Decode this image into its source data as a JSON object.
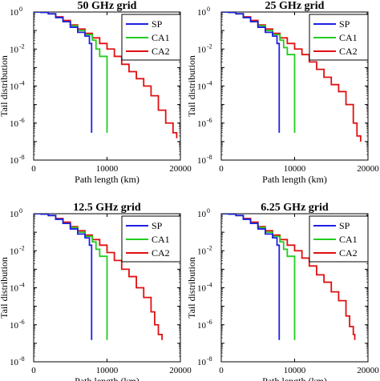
{
  "figure": {
    "xlabel": "Path length (km)",
    "ylabel": "Tail distribution"
  },
  "colors": {
    "SP": "#1f1fe6",
    "CA1": "#22cc22",
    "CA2": "#e01010",
    "axis": "#000000"
  },
  "chart_data": [
    {
      "type": "line",
      "title": "50 GHz grid",
      "xlabel": "Path length (km)",
      "ylabel": "Tail distribution",
      "xlim": [
        0,
        20000
      ],
      "ylim": [
        1e-08,
        1
      ],
      "yscale": "log",
      "grid": false,
      "legend": "top-right",
      "x_ticks": [
        0,
        10000,
        20000
      ],
      "x_tick_labels": [
        "0",
        "10000",
        "20000"
      ],
      "y_ticks": [
        1e-08,
        1e-06,
        0.0001,
        0.01,
        1
      ],
      "y_tick_labels": [
        [
          "10",
          "-8"
        ],
        [
          "10",
          "-6"
        ],
        [
          "10",
          "-4"
        ],
        [
          "10",
          "-2"
        ],
        [
          "10",
          "0"
        ]
      ],
      "series": [
        {
          "name": "SP",
          "color": "#1f1fe6",
          "x": [
            0,
            1000,
            2000,
            3000,
            4000,
            5000,
            6000,
            7000,
            7600,
            7900,
            7900
          ],
          "y": [
            1,
            0.95,
            0.8,
            0.5,
            0.3,
            0.15,
            0.08,
            0.05,
            0.02,
            0.01,
            3e-07
          ]
        },
        {
          "name": "CA1",
          "color": "#22cc22",
          "x": [
            0,
            1000,
            2000,
            3000,
            4000,
            5000,
            6000,
            7000,
            8000,
            8500,
            9000,
            10000,
            10000
          ],
          "y": [
            1,
            0.95,
            0.8,
            0.5,
            0.3,
            0.18,
            0.1,
            0.06,
            0.03,
            0.01,
            0.004,
            0.004,
            3e-07
          ]
        },
        {
          "name": "CA2",
          "color": "#e01010",
          "x": [
            0,
            1000,
            2000,
            3000,
            4000,
            5000,
            6000,
            7000,
            8000,
            9000,
            10000,
            11000,
            12000,
            13000,
            14000,
            15000,
            16000,
            17000,
            18000,
            19000,
            19500
          ],
          "y": [
            1,
            0.95,
            0.8,
            0.55,
            0.35,
            0.2,
            0.12,
            0.07,
            0.04,
            0.02,
            0.01,
            0.004,
            0.0015,
            0.0006,
            0.00025,
            0.0001,
            3e-05,
            5e-06,
            1e-06,
            3e-07,
            1.5e-07
          ]
        }
      ]
    },
    {
      "type": "line",
      "title": "25 GHz grid",
      "xlabel": "Path length (km)",
      "ylabel": "Tail distribution",
      "xlim": [
        0,
        20000
      ],
      "ylim": [
        1e-08,
        1
      ],
      "yscale": "log",
      "grid": false,
      "legend": "top-right",
      "x_ticks": [
        0,
        10000,
        20000
      ],
      "x_tick_labels": [
        "0",
        "10000",
        "20000"
      ],
      "y_ticks": [
        1e-08,
        1e-06,
        0.0001,
        0.01,
        1
      ],
      "y_tick_labels": [
        [
          "10",
          "-8"
        ],
        [
          "10",
          "-6"
        ],
        [
          "10",
          "-4"
        ],
        [
          "10",
          "-2"
        ],
        [
          "10",
          "0"
        ]
      ],
      "series": [
        {
          "name": "SP",
          "color": "#1f1fe6",
          "x": [
            0,
            1000,
            2000,
            3000,
            4000,
            5000,
            6000,
            7000,
            7600,
            7900,
            7900
          ],
          "y": [
            1,
            0.95,
            0.8,
            0.5,
            0.3,
            0.15,
            0.08,
            0.05,
            0.02,
            0.01,
            3e-07
          ]
        },
        {
          "name": "CA1",
          "color": "#22cc22",
          "x": [
            0,
            1000,
            2000,
            3000,
            4000,
            5000,
            6000,
            7000,
            8000,
            8500,
            9000,
            10000,
            10000
          ],
          "y": [
            1,
            0.95,
            0.8,
            0.5,
            0.3,
            0.18,
            0.1,
            0.06,
            0.03,
            0.012,
            0.005,
            0.005,
            3e-07
          ]
        },
        {
          "name": "CA2",
          "color": "#e01010",
          "x": [
            0,
            1000,
            2000,
            3000,
            4000,
            5000,
            6000,
            7000,
            8000,
            9000,
            10000,
            11000,
            12000,
            13000,
            14000,
            15000,
            16000,
            17000,
            18000,
            18500,
            19000
          ],
          "y": [
            1,
            0.95,
            0.8,
            0.55,
            0.35,
            0.2,
            0.12,
            0.07,
            0.04,
            0.02,
            0.01,
            0.005,
            0.002,
            0.0008,
            0.0003,
            0.00012,
            5e-05,
            1e-05,
            1e-06,
            2e-07,
            1e-07
          ]
        }
      ]
    },
    {
      "type": "line",
      "title": "12.5 GHz grid",
      "xlabel": "Path length (km)",
      "ylabel": "Tail distribution",
      "xlim": [
        0,
        20000
      ],
      "ylim": [
        1e-08,
        1
      ],
      "yscale": "log",
      "grid": false,
      "legend": "top-right",
      "x_ticks": [
        0,
        10000,
        20000
      ],
      "x_tick_labels": [
        "0",
        "10000",
        "20000"
      ],
      "y_ticks": [
        1e-08,
        1e-06,
        0.0001,
        0.01,
        1
      ],
      "y_tick_labels": [
        [
          "10",
          "-8"
        ],
        [
          "10",
          "-6"
        ],
        [
          "10",
          "-4"
        ],
        [
          "10",
          "-2"
        ],
        [
          "10",
          "0"
        ]
      ],
      "series": [
        {
          "name": "SP",
          "color": "#1f1fe6",
          "x": [
            0,
            1000,
            2000,
            3000,
            4000,
            5000,
            6000,
            7000,
            7600,
            7900,
            7900
          ],
          "y": [
            1,
            0.95,
            0.8,
            0.5,
            0.3,
            0.15,
            0.08,
            0.05,
            0.02,
            0.01,
            1.5e-07
          ]
        },
        {
          "name": "CA1",
          "color": "#22cc22",
          "x": [
            0,
            1000,
            2000,
            3000,
            4000,
            5000,
            6000,
            7000,
            8000,
            8500,
            9000,
            10000,
            10000
          ],
          "y": [
            1,
            0.95,
            0.8,
            0.5,
            0.3,
            0.18,
            0.1,
            0.06,
            0.03,
            0.012,
            0.005,
            0.005,
            1.5e-07
          ]
        },
        {
          "name": "CA2",
          "color": "#e01010",
          "x": [
            0,
            1000,
            2000,
            3000,
            4000,
            5000,
            6000,
            7000,
            8000,
            9000,
            10000,
            11000,
            12000,
            13000,
            14000,
            15000,
            16000,
            16500,
            17000,
            17500,
            17500
          ],
          "y": [
            1,
            0.95,
            0.8,
            0.55,
            0.35,
            0.2,
            0.12,
            0.07,
            0.04,
            0.02,
            0.008,
            0.003,
            0.001,
            0.0004,
            0.0001,
            3e-05,
            5e-06,
            1e-06,
            3e-07,
            2e-07,
            1.5e-07
          ]
        }
      ]
    },
    {
      "type": "line",
      "title": "6.25 GHz grid",
      "xlabel": "Path length (km)",
      "ylabel": "Tail distribution",
      "xlim": [
        0,
        20000
      ],
      "ylim": [
        1e-08,
        1
      ],
      "yscale": "log",
      "grid": false,
      "legend": "top-right",
      "x_ticks": [
        0,
        10000,
        20000
      ],
      "x_tick_labels": [
        "0",
        "10000",
        "20000"
      ],
      "y_ticks": [
        1e-08,
        1e-06,
        0.0001,
        0.01,
        1
      ],
      "y_tick_labels": [
        [
          "10",
          "-8"
        ],
        [
          "10",
          "-6"
        ],
        [
          "10",
          "-4"
        ],
        [
          "10",
          "-2"
        ],
        [
          "10",
          "0"
        ]
      ],
      "series": [
        {
          "name": "SP",
          "color": "#1f1fe6",
          "x": [
            0,
            1000,
            2000,
            3000,
            4000,
            5000,
            6000,
            7000,
            7600,
            7900,
            7900
          ],
          "y": [
            1,
            0.95,
            0.8,
            0.5,
            0.3,
            0.15,
            0.08,
            0.05,
            0.02,
            0.01,
            1.5e-07
          ]
        },
        {
          "name": "CA1",
          "color": "#22cc22",
          "x": [
            0,
            1000,
            2000,
            3000,
            4000,
            5000,
            6000,
            7000,
            8000,
            8500,
            9000,
            10000,
            10000
          ],
          "y": [
            1,
            0.95,
            0.8,
            0.5,
            0.3,
            0.18,
            0.1,
            0.06,
            0.03,
            0.012,
            0.005,
            0.005,
            1.5e-07
          ]
        },
        {
          "name": "CA2",
          "color": "#e01010",
          "x": [
            0,
            1000,
            2000,
            3000,
            4000,
            5000,
            6000,
            7000,
            8000,
            9000,
            10000,
            11000,
            12000,
            13000,
            14000,
            15000,
            16000,
            17000,
            17500,
            18000,
            18200
          ],
          "y": [
            1,
            0.95,
            0.8,
            0.55,
            0.35,
            0.2,
            0.12,
            0.07,
            0.04,
            0.02,
            0.01,
            0.004,
            0.0015,
            0.0005,
            0.0002,
            6e-05,
            2e-05,
            3e-06,
            8e-07,
            3e-07,
            1.5e-07
          ]
        }
      ]
    }
  ]
}
